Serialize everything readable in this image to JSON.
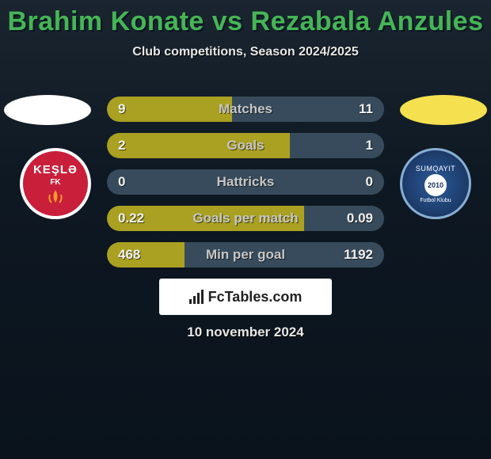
{
  "title": {
    "text": "Brahim Konate vs Rezabala Anzules",
    "color": "#46b556",
    "fontsize": 34
  },
  "subtitle": "Club competitions, Season 2024/2025",
  "country_flags": {
    "left": {
      "bg": "#ffffff",
      "stripe": "#ff8a00"
    },
    "right": {
      "bg": "#f5e050",
      "stripe": "#ffffff"
    }
  },
  "clubs": {
    "left": {
      "name": "KEŞLƏ",
      "sub": "FK",
      "bg": "#c91f3a",
      "border": "#ffffff"
    },
    "right": {
      "name": "SUMQAYIT",
      "sub": "Futbol Klubu",
      "year": "2010",
      "bg": "#1a3560",
      "border": "#88aed4"
    }
  },
  "stats": {
    "track_color": "#374b5c",
    "fill_left_color": "#aaa021",
    "fill_right_color": "#c7c7c7",
    "label_color": "#c7c7c7",
    "value_color": "#f2f2f2",
    "rows": [
      {
        "label": "Matches",
        "left_val": "9",
        "right_val": "11",
        "left_pct": 45,
        "right_pct": 0
      },
      {
        "label": "Goals",
        "left_val": "2",
        "right_val": "1",
        "left_pct": 66,
        "right_pct": 0
      },
      {
        "label": "Hattricks",
        "left_val": "0",
        "right_val": "0",
        "left_pct": 0,
        "right_pct": 0
      },
      {
        "label": "Goals per match",
        "left_val": "0.22",
        "right_val": "0.09",
        "left_pct": 71,
        "right_pct": 0
      },
      {
        "label": "Min per goal",
        "left_val": "468",
        "right_val": "1192",
        "left_pct": 28,
        "right_pct": 0
      }
    ]
  },
  "footer": {
    "brand": "FcTables.com",
    "date": "10 november 2024"
  }
}
